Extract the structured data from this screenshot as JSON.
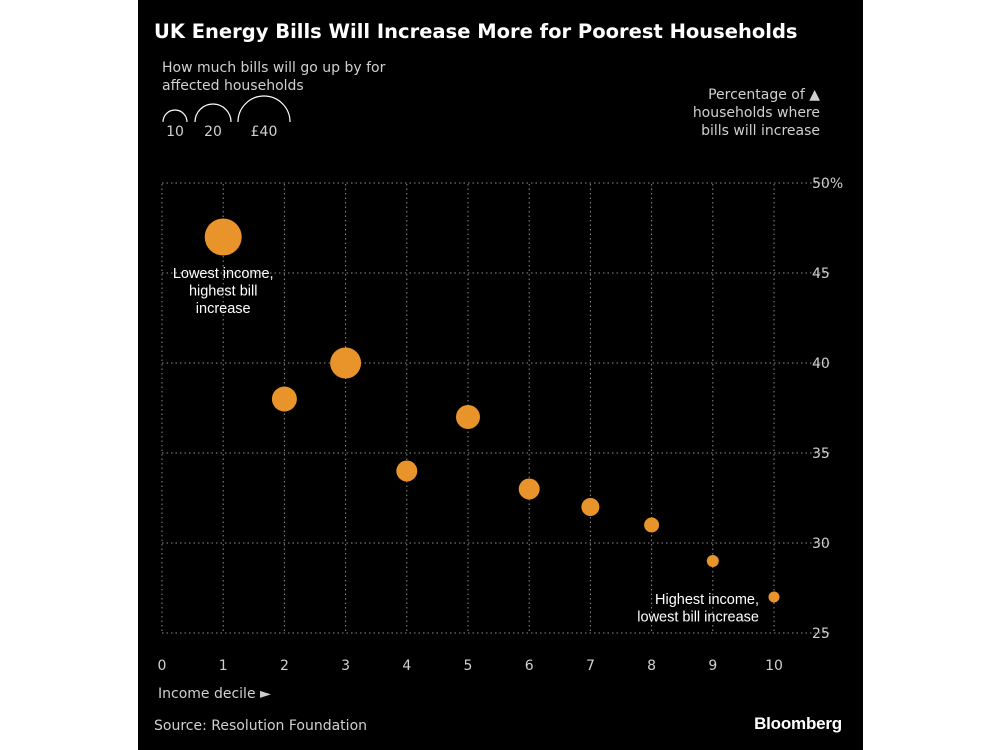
{
  "title": "UK Energy Bills Will Increase More for Poorest Households",
  "size_legend": {
    "title": "How much bills will go up by for affected households",
    "items": [
      {
        "label": "10",
        "value": 10
      },
      {
        "label": "20",
        "value": 20
      },
      {
        "label": "£40",
        "value": 40
      }
    ]
  },
  "y_axis_title": "Percentage of ▲ households where bills will increase",
  "x_axis_title": "Income decile ►",
  "source": "Source: Resolution Foundation",
  "brand": "Bloomberg",
  "colors": {
    "background": "#000000",
    "bubble": "#e8942a",
    "grid": "#8c8c8c"
  },
  "chart_data": {
    "type": "scatter",
    "title": "UK Energy Bills Will Increase More for Poorest Households",
    "xlabel": "Income decile",
    "ylabel": "Percentage of households where bills will increase",
    "xlim": [
      0,
      10.5
    ],
    "ylim": [
      25,
      50
    ],
    "x_ticks": [
      {
        "value": 0,
        "label": "0"
      },
      {
        "value": 1,
        "label": "1"
      },
      {
        "value": 2,
        "label": "2"
      },
      {
        "value": 3,
        "label": "3"
      },
      {
        "value": 4,
        "label": "4"
      },
      {
        "value": 5,
        "label": "5"
      },
      {
        "value": 6,
        "label": "6"
      },
      {
        "value": 7,
        "label": "7"
      },
      {
        "value": 8,
        "label": "8"
      },
      {
        "value": 9,
        "label": "9"
      },
      {
        "value": 10,
        "label": "10"
      }
    ],
    "y_ticks": [
      {
        "value": 25,
        "label": "25"
      },
      {
        "value": 30,
        "label": "30"
      },
      {
        "value": 35,
        "label": "35"
      },
      {
        "value": 40,
        "label": "40"
      },
      {
        "value": 45,
        "label": "45"
      },
      {
        "value": 50,
        "label": "50%"
      }
    ],
    "grid": true,
    "points": [
      {
        "x": 1,
        "y": 47,
        "size": 37
      },
      {
        "x": 2,
        "y": 38,
        "size": 25
      },
      {
        "x": 3,
        "y": 40,
        "size": 31
      },
      {
        "x": 4,
        "y": 34,
        "size": 21
      },
      {
        "x": 5,
        "y": 37,
        "size": 24
      },
      {
        "x": 6,
        "y": 33,
        "size": 21
      },
      {
        "x": 7,
        "y": 32,
        "size": 18
      },
      {
        "x": 8,
        "y": 31,
        "size": 15
      },
      {
        "x": 9,
        "y": 29,
        "size": 12
      },
      {
        "x": 10,
        "y": 27,
        "size": 11
      }
    ],
    "annotations": [
      {
        "x": 1,
        "y": 47,
        "lines": [
          "Lowest income,",
          "highest bill",
          "increase"
        ],
        "position": "below"
      },
      {
        "x": 10,
        "y": 27,
        "lines": [
          "Highest income,",
          "lowest bill increase"
        ],
        "position": "left"
      }
    ]
  }
}
